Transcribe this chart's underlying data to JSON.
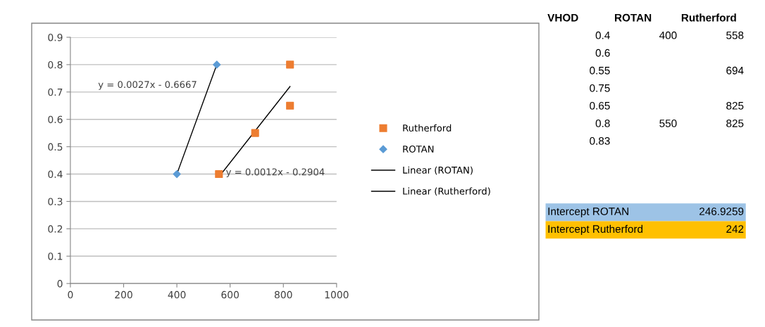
{
  "chart_data": [
    {
      "type": "scatter",
      "xlim": [
        0,
        1000
      ],
      "xticks": [
        0,
        200,
        400,
        600,
        800,
        1000
      ],
      "ylim": [
        0,
        0.9
      ],
      "yticks": [
        0,
        0.1,
        0.2,
        0.3,
        0.4,
        0.5,
        0.6,
        0.7,
        0.8,
        0.9
      ],
      "grid": "y",
      "legend": "right",
      "series": [
        {
          "name": "Rutherford",
          "color": "#ed7d31",
          "marker": "square",
          "x": [
            558,
            694,
            825,
            825
          ],
          "values": [
            0.4,
            0.55,
            0.65,
            0.8
          ]
        },
        {
          "name": "ROTAN",
          "color": "#5b9bd5",
          "marker": "diamond",
          "x": [
            400,
            550
          ],
          "values": [
            0.4,
            0.8
          ]
        },
        {
          "name": "Linear (ROTAN)",
          "type": "line",
          "color": "#000000",
          "marker": "none",
          "x": [
            400,
            550
          ],
          "values": [
            0.4,
            0.8
          ]
        },
        {
          "name": "Linear (Rutherford)",
          "type": "line",
          "color": "#000000",
          "marker": "none",
          "x": [
            558,
            825
          ],
          "values": [
            0.39,
            0.72
          ]
        }
      ],
      "annotations": [
        "y = 0.0027x - 0.6667",
        "y = 0.0012x - 0.2904"
      ]
    },
    {
      "type": "other",
      "annotations": [
        "VHOD",
        "ROTAN",
        "Rutherford",
        "0.4",
        "400",
        "558",
        "0.6",
        null,
        null,
        "0.55",
        null,
        "694",
        "0.75",
        null,
        null,
        "0.65",
        null,
        "825",
        "0.8",
        "550",
        "825",
        "0.83",
        null,
        null,
        "Intercept ROTAN",
        null,
        "246.9259",
        "Intercept Rutherford",
        null,
        "242"
      ],
      "colors": [
        null,
        null,
        null,
        null,
        null,
        null,
        null,
        null,
        "#9dc3e6",
        "#ffc000"
      ]
    }
  ]
}
